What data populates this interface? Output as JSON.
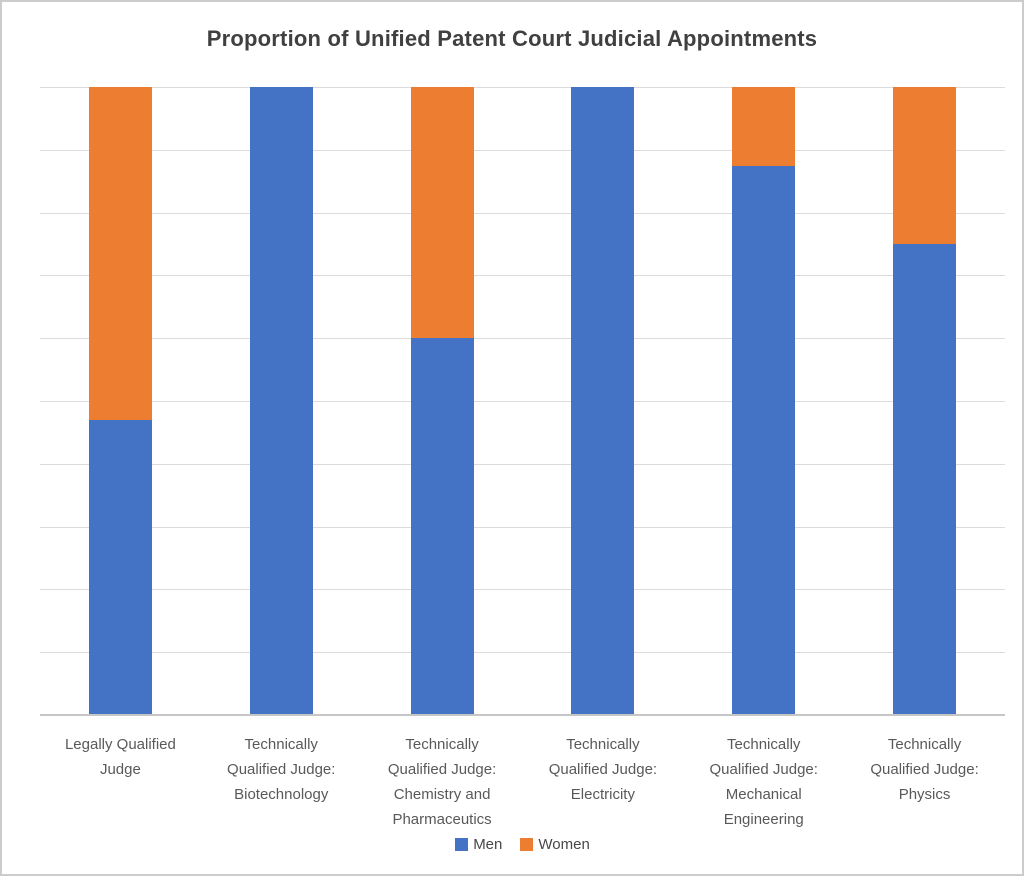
{
  "title": "Proportion of Unified Patent Court Judicial Appointments",
  "chart_data": {
    "type": "bar",
    "subtype": "stacked-column-100-percent",
    "title": "Proportion of Unified Patent Court Judicial Appointments",
    "categories": [
      "Legally Qualified Judge",
      "Technically Qualified Judge: Biotechnology",
      "Technically Qualified Judge: Chemistry and Pharmaceutics",
      "Technically Qualified Judge: Electricity",
      "Technically Qualified Judge: Mechanical Engineering",
      "Technically Qualified Judge: Physics"
    ],
    "series": [
      {
        "name": "Men",
        "color": "#4472C4",
        "values": [
          47,
          100,
          60,
          100,
          87.5,
          75
        ]
      },
      {
        "name": "Women",
        "color": "#ED7D31",
        "values": [
          53,
          0,
          40,
          0,
          12.5,
          25
        ]
      }
    ],
    "unit": "percent",
    "ylim": [
      0,
      100
    ],
    "y_gridline_step": 10,
    "y_tick_labels_visible": false,
    "grid": "horizontal",
    "legend_position": "bottom"
  },
  "legend": {
    "items": [
      {
        "label": "Men",
        "color": "#4472C4"
      },
      {
        "label": "Women",
        "color": "#ED7D31"
      }
    ]
  },
  "colors": {
    "men": "#4472C4",
    "women": "#ED7D31",
    "title_text": "#404040",
    "axis_text": "#595959",
    "gridline": "#DCDCDC",
    "axis_line": "#C6C6C6",
    "background": "#FFFFFF",
    "frame_border": "#CCCCCC"
  }
}
